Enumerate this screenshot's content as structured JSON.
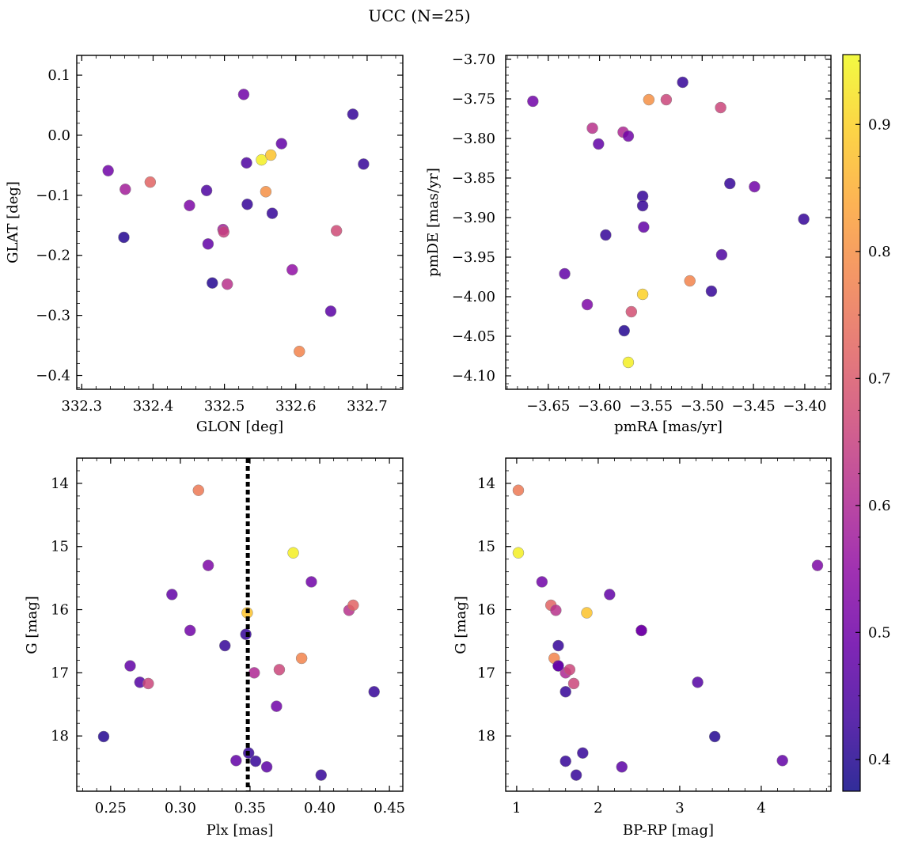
{
  "figure": {
    "title": "UCC (N=25)"
  },
  "colorbar": {
    "vmin": 0.375,
    "vmax": 0.955,
    "ticks": [
      0.4,
      0.5,
      0.6,
      0.7,
      0.8,
      0.9
    ],
    "tick_labels": [
      "0.4",
      "0.5",
      "0.6",
      "0.7",
      "0.8",
      "0.9"
    ],
    "colormap": "plasma"
  },
  "chart_data": [
    {
      "type": "scatter",
      "xlabel": "GLON [deg]",
      "ylabel": "GLAT [deg]",
      "xlim": [
        332.293,
        332.75
      ],
      "ylim": [
        -0.423,
        0.133
      ],
      "xticks": [
        332.3,
        332.4,
        332.5,
        332.6,
        332.7
      ],
      "xtick_labels": [
        "332.3",
        "332.4",
        "332.5",
        "332.6",
        "332.7"
      ],
      "yticks": [
        0.1,
        0.0,
        -0.1,
        -0.2,
        -0.3,
        -0.4
      ],
      "ytick_labels": [
        "0.1",
        "0.0",
        "−0.1",
        "−0.2",
        "−0.3",
        "−0.4"
      ],
      "points": [
        {
          "x": 332.337,
          "y": -0.059,
          "c": 0.5
        },
        {
          "x": 332.361,
          "y": -0.09,
          "c": 0.58
        },
        {
          "x": 332.359,
          "y": -0.17,
          "c": 0.4
        },
        {
          "x": 332.396,
          "y": -0.078,
          "c": 0.72
        },
        {
          "x": 332.451,
          "y": -0.117,
          "c": 0.52
        },
        {
          "x": 332.475,
          "y": -0.092,
          "c": 0.45
        },
        {
          "x": 332.477,
          "y": -0.181,
          "c": 0.48
        },
        {
          "x": 332.483,
          "y": -0.246,
          "c": 0.4
        },
        {
          "x": 332.498,
          "y": -0.157,
          "c": 0.58
        },
        {
          "x": 332.499,
          "y": -0.161,
          "c": 0.65
        },
        {
          "x": 332.504,
          "y": -0.248,
          "c": 0.62
        },
        {
          "x": 332.527,
          "y": 0.068,
          "c": 0.5
        },
        {
          "x": 332.531,
          "y": -0.046,
          "c": 0.45
        },
        {
          "x": 332.532,
          "y": -0.115,
          "c": 0.42
        },
        {
          "x": 332.552,
          "y": -0.041,
          "c": 0.94
        },
        {
          "x": 332.558,
          "y": -0.094,
          "c": 0.8
        },
        {
          "x": 332.565,
          "y": -0.033,
          "c": 0.88
        },
        {
          "x": 332.567,
          "y": -0.13,
          "c": 0.42
        },
        {
          "x": 332.58,
          "y": -0.014,
          "c": 0.48
        },
        {
          "x": 332.595,
          "y": -0.224,
          "c": 0.55
        },
        {
          "x": 332.605,
          "y": -0.36,
          "c": 0.78
        },
        {
          "x": 332.649,
          "y": -0.293,
          "c": 0.47
        },
        {
          "x": 332.657,
          "y": -0.159,
          "c": 0.67
        },
        {
          "x": 332.68,
          "y": 0.035,
          "c": 0.42
        },
        {
          "x": 332.695,
          "y": -0.048,
          "c": 0.42
        }
      ]
    },
    {
      "type": "scatter",
      "xlabel": "pmRA [mas/yr]",
      "ylabel": "pmDE [mas/yr]",
      "xlim": [
        -3.6915,
        -3.3745
      ],
      "ylim": [
        -4.117,
        -3.695
      ],
      "xticks": [
        -3.65,
        -3.6,
        -3.55,
        -3.5,
        -3.45,
        -3.4
      ],
      "xtick_labels": [
        "−3.65",
        "−3.60",
        "−3.55",
        "−3.50",
        "−3.45",
        "−3.40"
      ],
      "yticks": [
        -3.7,
        -3.75,
        -3.8,
        -3.85,
        -3.9,
        -3.95,
        -4.0,
        -4.05,
        -4.1
      ],
      "ytick_labels": [
        "−3.70",
        "−3.75",
        "−3.80",
        "−3.85",
        "−3.90",
        "−3.95",
        "−4.00",
        "−4.05",
        "−4.10"
      ],
      "points": [
        {
          "x": -3.665,
          "y": -3.753,
          "c": 0.5
        },
        {
          "x": -3.634,
          "y": -3.971,
          "c": 0.48
        },
        {
          "x": -3.612,
          "y": -4.01,
          "c": 0.52
        },
        {
          "x": -3.607,
          "y": -3.787,
          "c": 0.62
        },
        {
          "x": -3.601,
          "y": -3.807,
          "c": 0.48
        },
        {
          "x": -3.594,
          "y": -3.922,
          "c": 0.42
        },
        {
          "x": -3.577,
          "y": -3.792,
          "c": 0.6
        },
        {
          "x": -3.576,
          "y": -4.043,
          "c": 0.4
        },
        {
          "x": -3.572,
          "y": -3.797,
          "c": 0.5
        },
        {
          "x": -3.572,
          "y": -4.083,
          "c": 0.94
        },
        {
          "x": -3.569,
          "y": -4.019,
          "c": 0.68
        },
        {
          "x": -3.558,
          "y": -3.873,
          "c": 0.42
        },
        {
          "x": -3.558,
          "y": -3.885,
          "c": 0.42
        },
        {
          "x": -3.557,
          "y": -3.912,
          "c": 0.48
        },
        {
          "x": -3.558,
          "y": -3.997,
          "c": 0.9
        },
        {
          "x": -3.552,
          "y": -3.751,
          "c": 0.8
        },
        {
          "x": -3.535,
          "y": -3.751,
          "c": 0.66
        },
        {
          "x": -3.519,
          "y": -3.729,
          "c": 0.42
        },
        {
          "x": -3.512,
          "y": -3.98,
          "c": 0.78
        },
        {
          "x": -3.491,
          "y": -3.993,
          "c": 0.42
        },
        {
          "x": -3.482,
          "y": -3.761,
          "c": 0.66
        },
        {
          "x": -3.481,
          "y": -3.947,
          "c": 0.45
        },
        {
          "x": -3.473,
          "y": -3.857,
          "c": 0.42
        },
        {
          "x": -3.449,
          "y": -3.861,
          "c": 0.5
        },
        {
          "x": -3.401,
          "y": -3.902,
          "c": 0.42
        }
      ]
    },
    {
      "type": "scatter",
      "xlabel": "Plx [mas]",
      "ylabel": "G [mag]",
      "xlim": [
        0.2257,
        0.4596
      ],
      "ylim": [
        18.875,
        13.6
      ],
      "y_inverted": true,
      "vline": {
        "x": 0.3484,
        "style": "dotted",
        "color": "#000000"
      },
      "xticks": [
        0.25,
        0.3,
        0.35,
        0.4,
        0.45
      ],
      "xtick_labels": [
        "0.25",
        "0.30",
        "0.35",
        "0.40",
        "0.45"
      ],
      "yticks": [
        14,
        15,
        16,
        17,
        18
      ],
      "ytick_labels": [
        "14",
        "15",
        "16",
        "17",
        "18"
      ],
      "points": [
        {
          "x": 0.245,
          "y": 18.01,
          "c": 0.4
        },
        {
          "x": 0.264,
          "y": 16.89,
          "c": 0.48
        },
        {
          "x": 0.271,
          "y": 17.15,
          "c": 0.46
        },
        {
          "x": 0.277,
          "y": 17.17,
          "c": 0.66
        },
        {
          "x": 0.294,
          "y": 15.76,
          "c": 0.48
        },
        {
          "x": 0.307,
          "y": 16.33,
          "c": 0.5
        },
        {
          "x": 0.313,
          "y": 14.11,
          "c": 0.76
        },
        {
          "x": 0.32,
          "y": 15.3,
          "c": 0.52
        },
        {
          "x": 0.332,
          "y": 16.57,
          "c": 0.42
        },
        {
          "x": 0.34,
          "y": 18.39,
          "c": 0.48
        },
        {
          "x": 0.347,
          "y": 16.39,
          "c": 0.42
        },
        {
          "x": 0.348,
          "y": 16.05,
          "c": 0.88
        },
        {
          "x": 0.349,
          "y": 18.27,
          "c": 0.42
        },
        {
          "x": 0.353,
          "y": 17.0,
          "c": 0.6
        },
        {
          "x": 0.354,
          "y": 18.4,
          "c": 0.42
        },
        {
          "x": 0.362,
          "y": 18.49,
          "c": 0.47
        },
        {
          "x": 0.369,
          "y": 17.53,
          "c": 0.5
        },
        {
          "x": 0.371,
          "y": 16.95,
          "c": 0.66
        },
        {
          "x": 0.381,
          "y": 15.1,
          "c": 0.94
        },
        {
          "x": 0.387,
          "y": 16.77,
          "c": 0.78
        },
        {
          "x": 0.394,
          "y": 15.56,
          "c": 0.5
        },
        {
          "x": 0.401,
          "y": 18.62,
          "c": 0.42
        },
        {
          "x": 0.421,
          "y": 16.01,
          "c": 0.62
        },
        {
          "x": 0.424,
          "y": 15.93,
          "c": 0.72
        },
        {
          "x": 0.439,
          "y": 17.3,
          "c": 0.42
        }
      ]
    },
    {
      "type": "scatter",
      "xlabel": "BP-RP [mag]",
      "ylabel": "G [mag]",
      "xlim": [
        0.865,
        4.855
      ],
      "ylim": [
        18.875,
        13.6
      ],
      "y_inverted": true,
      "xticks": [
        1,
        2,
        3,
        4
      ],
      "xtick_labels": [
        "1",
        "2",
        "3",
        "4"
      ],
      "yticks": [
        14,
        15,
        16,
        17,
        18
      ],
      "ytick_labels": [
        "14",
        "15",
        "16",
        "17",
        "18"
      ],
      "points": [
        {
          "x": 1.02,
          "y": 14.11,
          "c": 0.76
        },
        {
          "x": 1.02,
          "y": 15.1,
          "c": 0.94
        },
        {
          "x": 1.31,
          "y": 15.56,
          "c": 0.5
        },
        {
          "x": 1.42,
          "y": 15.93,
          "c": 0.72
        },
        {
          "x": 1.48,
          "y": 16.01,
          "c": 0.62
        },
        {
          "x": 1.51,
          "y": 16.57,
          "c": 0.42
        },
        {
          "x": 1.51,
          "y": 16.89,
          "c": 0.48
        },
        {
          "x": 1.46,
          "y": 16.77,
          "c": 0.78
        },
        {
          "x": 1.6,
          "y": 17.0,
          "c": 0.6
        },
        {
          "x": 1.65,
          "y": 16.95,
          "c": 0.66
        },
        {
          "x": 1.6,
          "y": 17.3,
          "c": 0.42
        },
        {
          "x": 1.7,
          "y": 17.17,
          "c": 0.66
        },
        {
          "x": 1.86,
          "y": 16.05,
          "c": 0.88
        },
        {
          "x": 2.14,
          "y": 15.76,
          "c": 0.48
        },
        {
          "x": 2.53,
          "y": 16.33,
          "c": 0.5
        },
        {
          "x": 3.22,
          "y": 17.15,
          "c": 0.46
        },
        {
          "x": 3.43,
          "y": 18.01,
          "c": 0.4
        },
        {
          "x": 1.81,
          "y": 18.27,
          "c": 0.42
        },
        {
          "x": 1.6,
          "y": 18.4,
          "c": 0.42
        },
        {
          "x": 1.73,
          "y": 18.62,
          "c": 0.42
        },
        {
          "x": 2.29,
          "y": 18.49,
          "c": 0.47
        },
        {
          "x": 4.26,
          "y": 18.39,
          "c": 0.48
        },
        {
          "x": 4.69,
          "y": 15.3,
          "c": 0.52
        },
        {
          "x": 2.53,
          "y": 16.33,
          "c": 0.5
        },
        {
          "x": 1.51,
          "y": 16.89,
          "c": 0.48
        }
      ]
    }
  ]
}
